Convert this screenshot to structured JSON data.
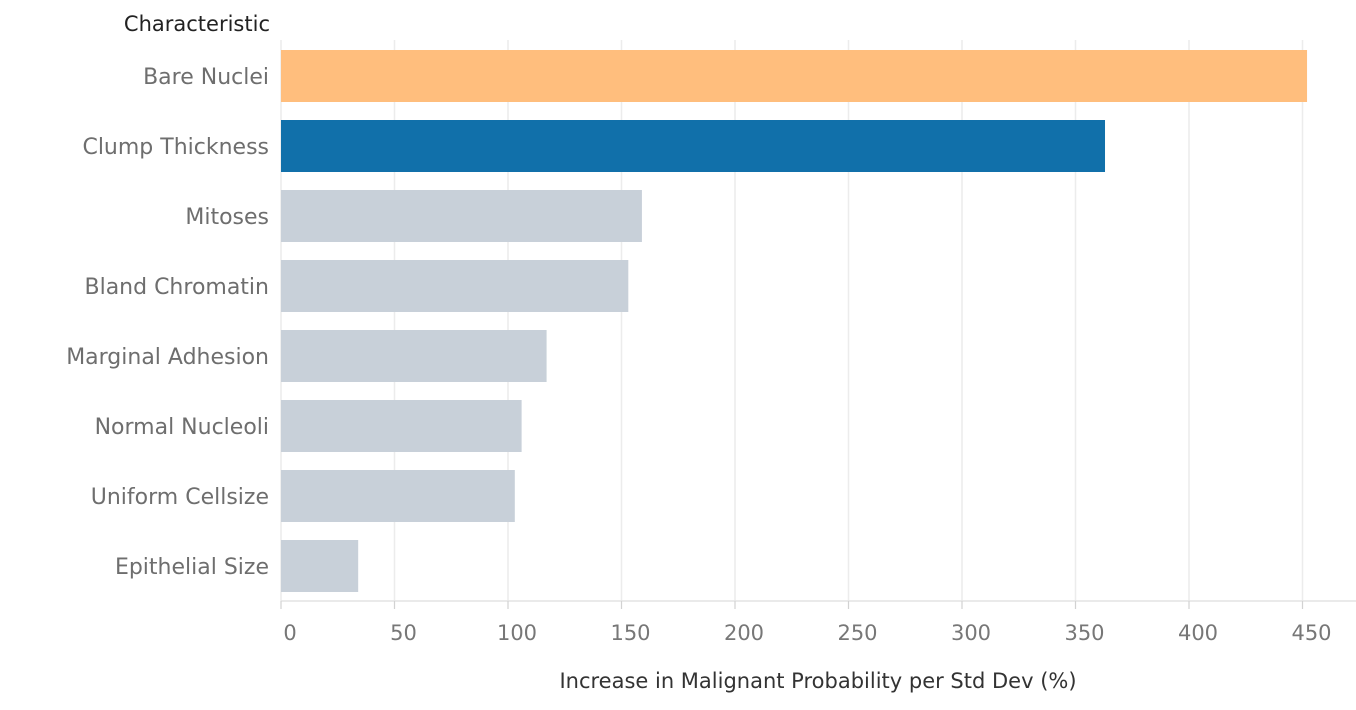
{
  "chart_data": {
    "type": "bar",
    "orientation": "horizontal",
    "row_header": "Characteristic",
    "categories": [
      "Bare Nuclei",
      "Clump Thickness",
      "Mitoses",
      "Bland Chromatin",
      "Marginal Adhesion",
      "Normal Nucleoli",
      "Uniform Cellsize",
      "Epithelial Size"
    ],
    "values": [
      452,
      363,
      159,
      153,
      117,
      106,
      103,
      34
    ],
    "bar_colors": [
      "#ffbe7d",
      "#1170aa",
      "#c8d0d9",
      "#c8d0d9",
      "#c8d0d9",
      "#c8d0d9",
      "#c8d0d9",
      "#c8d0d9"
    ],
    "xlabel": "Increase in Malignant Probability per Std Dev (%)",
    "xlim": [
      0,
      475
    ],
    "xticks": [
      0,
      50,
      100,
      150,
      200,
      250,
      300,
      350,
      400,
      450
    ],
    "grid": true
  }
}
